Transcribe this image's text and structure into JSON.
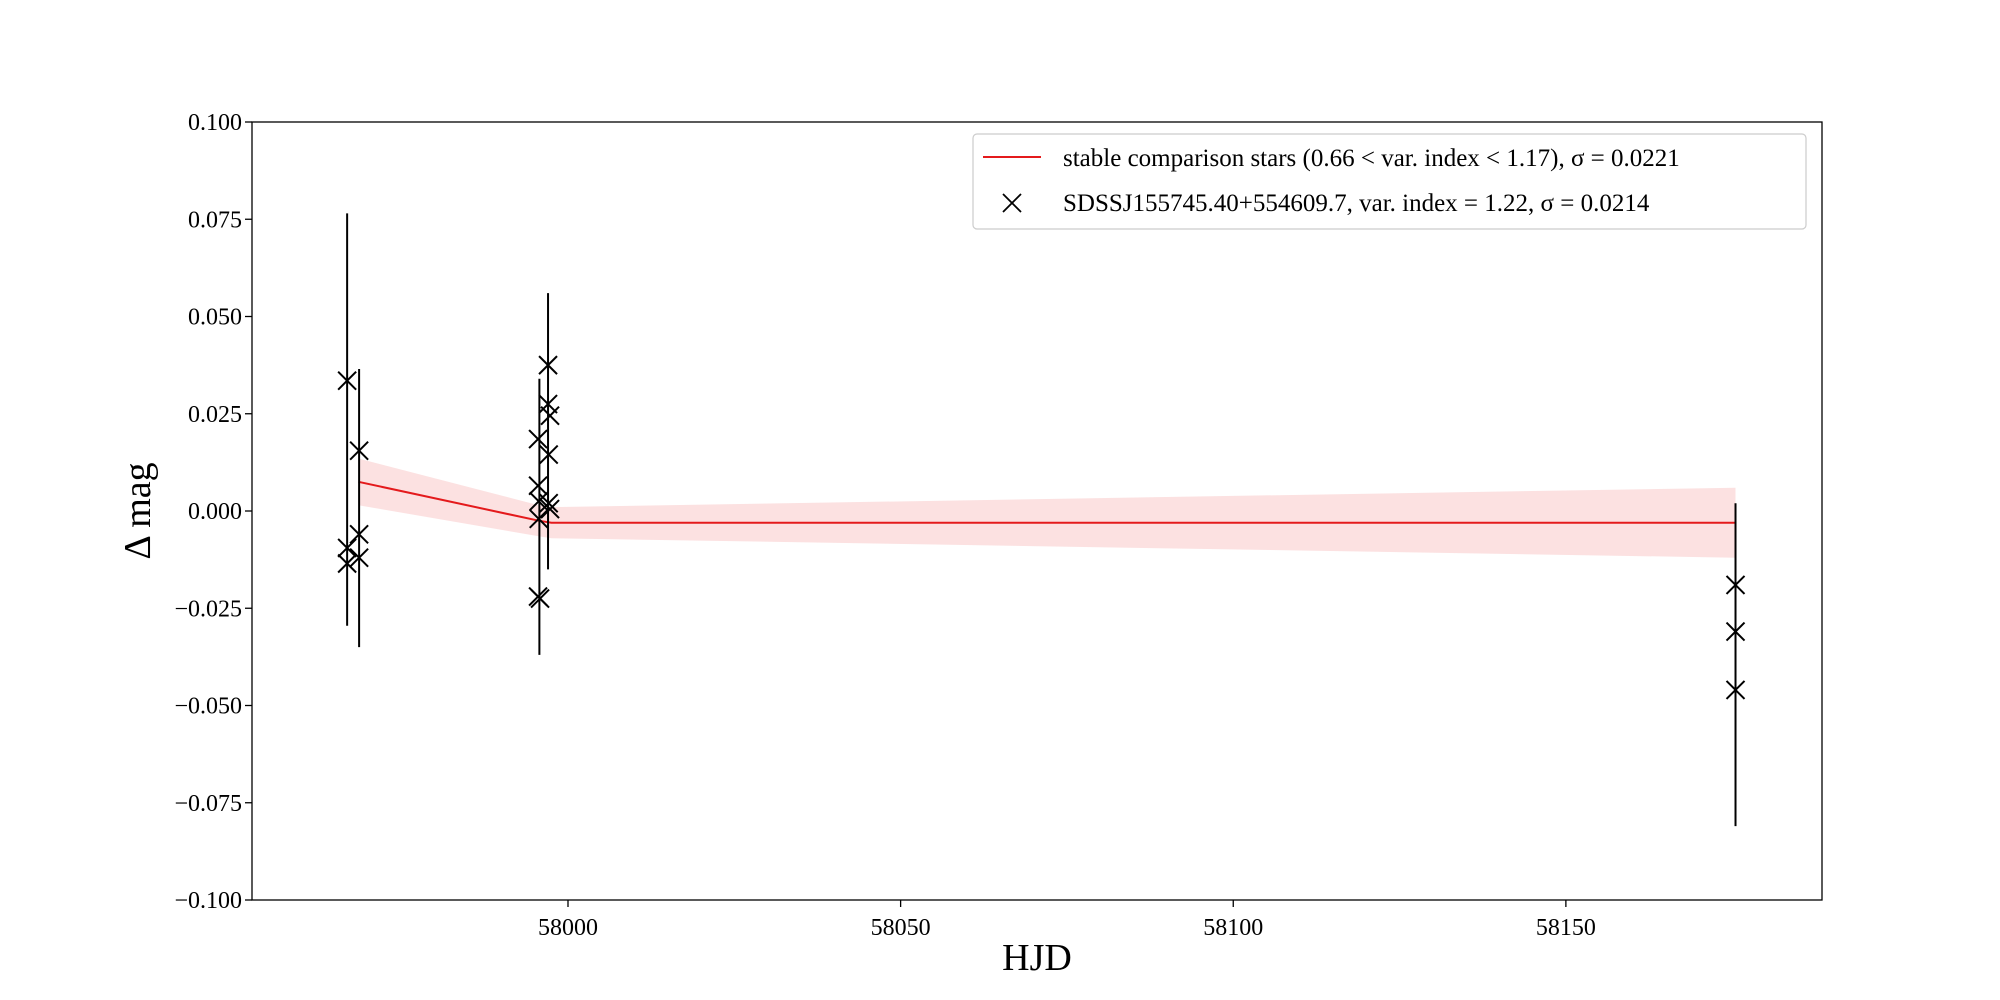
{
  "chart_data": {
    "type": "scatter",
    "xlabel": "HJD",
    "ylabel": "Δ mag",
    "xlim": [
      57952.5,
      58188.5
    ],
    "ylim": [
      -0.1,
      0.1
    ],
    "xticks": [
      58000,
      58050,
      58100,
      58150
    ],
    "yticks": [
      -0.1,
      -0.075,
      -0.05,
      -0.025,
      0.0,
      0.025,
      0.05,
      0.075,
      0.1
    ],
    "xtick_labels": [
      "58000",
      "58050",
      "58100",
      "58150"
    ],
    "ytick_labels": [
      "−0.100",
      "−0.075",
      "−0.050",
      "−0.025",
      "0.000",
      "0.025",
      "0.050",
      "0.075",
      "0.100"
    ],
    "grid": false,
    "legend_position": "top-right",
    "colors": {
      "line": "#e41a1c",
      "band": "#fbd4d4",
      "points": "#000000"
    },
    "legend": [
      {
        "label": "stable comparison stars (0.66 < var. index < 1.17), σ = 0.0221",
        "marker": "line"
      },
      {
        "label": "SDSSJ155745.40+554609.7, var. index = 1.22, σ  = 0.0214",
        "marker": "x"
      }
    ],
    "series": [
      {
        "name": "stable comparison stars (0.66 < var. index < 1.17), σ = 0.0221",
        "kind": "line_with_band",
        "x": [
          57968.5,
          57995.6,
          57997.5,
          58175.5
        ],
        "y": [
          0.0075,
          -0.0025,
          -0.003,
          -0.003
        ],
        "band_low": [
          0.0015,
          -0.0065,
          -0.007,
          -0.012
        ],
        "band_high": [
          0.0135,
          0.0015,
          0.001,
          0.006
        ]
      },
      {
        "name": "SDSSJ155745.40+554609.7, var. index = 1.22, σ  = 0.0214",
        "kind": "errorbar_points",
        "error_groups": [
          {
            "x": 57966.8,
            "y_low": -0.0295,
            "y_high": 0.0765
          },
          {
            "x": 57968.6,
            "y_low": -0.035,
            "y_high": 0.0365
          },
          {
            "x": 57995.7,
            "y_low": -0.037,
            "y_high": 0.034
          },
          {
            "x": 57997.0,
            "y_low": -0.015,
            "y_high": 0.056
          },
          {
            "x": 58175.5,
            "y_low": -0.081,
            "y_high": 0.002
          }
        ],
        "points": [
          {
            "x": 57966.8,
            "y": 0.0335
          },
          {
            "x": 57966.8,
            "y": -0.0095
          },
          {
            "x": 57966.8,
            "y": -0.0135
          },
          {
            "x": 57968.6,
            "y": 0.0155
          },
          {
            "x": 57968.6,
            "y": -0.006
          },
          {
            "x": 57968.6,
            "y": -0.012
          },
          {
            "x": 57995.5,
            "y": 0.0185
          },
          {
            "x": 57995.5,
            "y": 0.0065
          },
          {
            "x": 57995.6,
            "y": 0.0025
          },
          {
            "x": 57995.6,
            "y": -0.002
          },
          {
            "x": 57995.5,
            "y": -0.022
          },
          {
            "x": 57995.8,
            "y": -0.0225
          },
          {
            "x": 57997.0,
            "y": 0.0375
          },
          {
            "x": 57997.0,
            "y": 0.0275
          },
          {
            "x": 57997.3,
            "y": 0.0245
          },
          {
            "x": 57997.1,
            "y": 0.0145
          },
          {
            "x": 57997.1,
            "y": 0.002
          },
          {
            "x": 57997.3,
            "y": 0.0005
          },
          {
            "x": 58175.5,
            "y": -0.019
          },
          {
            "x": 58175.5,
            "y": -0.031
          },
          {
            "x": 58175.5,
            "y": -0.046
          }
        ]
      }
    ]
  }
}
